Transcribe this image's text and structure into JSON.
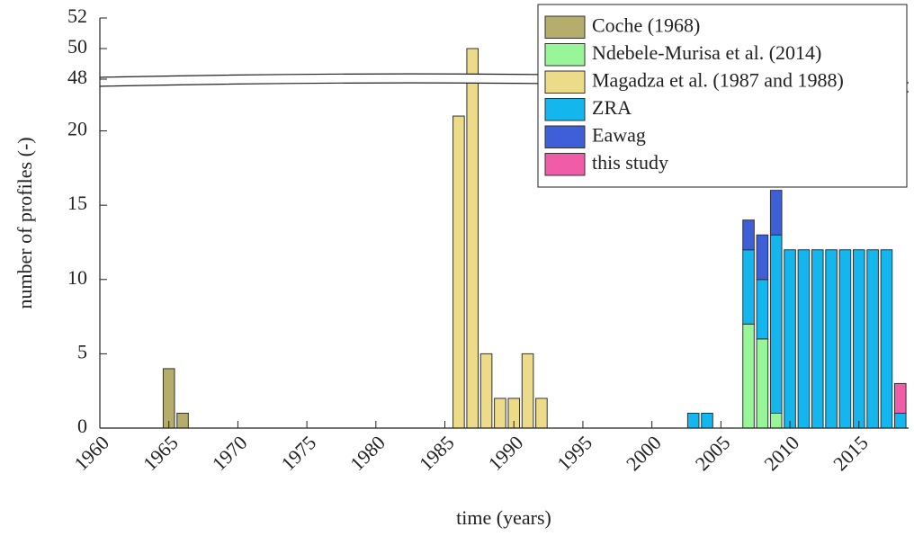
{
  "chart_data": {
    "type": "bar",
    "stacked": true,
    "xlabel": "time (years)",
    "ylabel": "number of profiles (-)",
    "x": [
      1965,
      1966,
      1986,
      1987,
      1988,
      1989,
      1990,
      1991,
      1992,
      2003,
      2004,
      2007,
      2008,
      2009,
      2010,
      2011,
      2012,
      2013,
      2014,
      2015,
      2016,
      2017,
      2018
    ],
    "series": [
      {
        "name": "Coche (1968)",
        "color": "#b5ad6b",
        "values": [
          4,
          1,
          null,
          null,
          null,
          null,
          null,
          null,
          null,
          null,
          null,
          null,
          null,
          null,
          null,
          null,
          null,
          null,
          null,
          null,
          null,
          null,
          null
        ]
      },
      {
        "name": "Ndebele-Murisa et al. (2014)",
        "color": "#98f598",
        "values": [
          null,
          null,
          null,
          null,
          null,
          null,
          null,
          null,
          null,
          null,
          null,
          7,
          6,
          1,
          null,
          null,
          null,
          null,
          null,
          null,
          null,
          null,
          null
        ]
      },
      {
        "name": "Magadza et al. (1987 and 1988)",
        "color": "#ecdc8a",
        "values": [
          null,
          null,
          21,
          50,
          5,
          2,
          2,
          5,
          2,
          null,
          null,
          null,
          null,
          null,
          null,
          null,
          null,
          null,
          null,
          null,
          null,
          null,
          null
        ]
      },
      {
        "name": "ZRA",
        "color": "#13b7ee",
        "values": [
          null,
          null,
          null,
          null,
          null,
          null,
          null,
          null,
          null,
          1,
          1,
          5,
          4,
          12,
          12,
          12,
          12,
          12,
          12,
          12,
          12,
          12,
          1
        ]
      },
      {
        "name": "Eawag",
        "color": "#3f5fd9",
        "values": [
          null,
          null,
          null,
          null,
          null,
          null,
          null,
          null,
          null,
          null,
          null,
          2,
          3,
          3,
          null,
          null,
          null,
          null,
          null,
          null,
          null,
          null,
          null
        ]
      },
      {
        "name": "this study",
        "color": "#f05ca8",
        "values": [
          null,
          null,
          null,
          null,
          null,
          null,
          null,
          null,
          null,
          null,
          null,
          null,
          null,
          null,
          null,
          null,
          null,
          null,
          null,
          null,
          null,
          null,
          2
        ]
      }
    ],
    "xlim": [
      1960,
      2018.6
    ],
    "xticks": [
      1960,
      1965,
      1970,
      1975,
      1980,
      1985,
      1990,
      1995,
      2000,
      2005,
      2010,
      2015
    ],
    "ylim": [
      0,
      52
    ],
    "axis_break": [
      23,
      48
    ],
    "yticks": [
      0,
      5,
      10,
      15,
      20,
      48,
      50,
      52
    ],
    "legend": "upper right"
  }
}
